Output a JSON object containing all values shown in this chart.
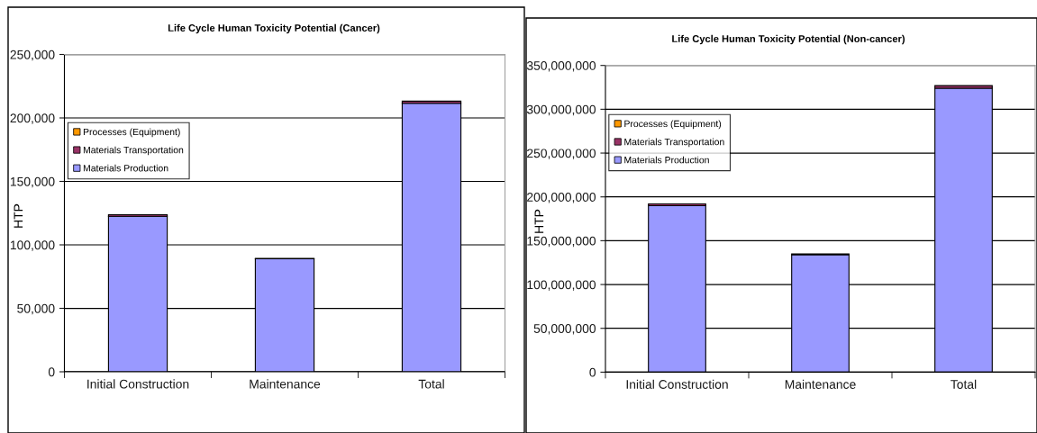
{
  "chart_data": [
    {
      "type": "bar",
      "title": "Life Cycle Human Toxicity Potential (Cancer)",
      "ylabel": "HTP",
      "categories": [
        "Initial Construction",
        "Maintenance",
        "Total"
      ],
      "stacked": true,
      "series": [
        {
          "name": "Materials Production",
          "color": "#9999ff",
          "values": [
            122500,
            89000,
            211500
          ]
        },
        {
          "name": "Materials Transportation",
          "color": "#993366",
          "values": [
            1300,
            400,
            1700
          ]
        },
        {
          "name": "Processes (Equipment)",
          "color": "#ff9900",
          "values": [
            null,
            null,
            null
          ]
        }
      ],
      "ylim": [
        0,
        250000
      ],
      "yticks": [
        0,
        {
          "value": 50000,
          "label": "50,000"
        },
        {
          "value": 100000,
          "label": "100,000"
        },
        {
          "value": 150000,
          "label": "150,000"
        },
        {
          "value": 200000,
          "label": "200,000"
        },
        {
          "value": 250000,
          "label": "250,000"
        }
      ],
      "grid": "y",
      "legend": "top left"
    },
    {
      "type": "bar",
      "title": "Life Cycle Human Toxicity Potential (Non-cancer)",
      "ylabel": "HTP",
      "categories": [
        "Initial Construction",
        "Maintenance",
        "Total"
      ],
      "stacked": true,
      "series": [
        {
          "name": "Materials Production",
          "color": "#9999ff",
          "values": [
            190000000,
            134000000,
            324000000
          ]
        },
        {
          "name": "Materials Transportation",
          "color": "#993366",
          "values": [
            2000000,
            1000000,
            3000000
          ]
        },
        {
          "name": "Processes (Equipment)",
          "color": "#ff9900",
          "values": [
            null,
            null,
            null
          ]
        }
      ],
      "ylim": [
        0,
        350000000
      ],
      "yticks": [
        0,
        {
          "value": 50000000,
          "label": "50,000,000"
        },
        {
          "value": 100000000,
          "label": "100,000,000"
        },
        {
          "value": 150000000,
          "label": "150,000,000"
        },
        {
          "value": 200000000,
          "label": "200,000,000"
        },
        {
          "value": 250000000,
          "label": "250,000,000"
        },
        {
          "value": 300000000,
          "label": "300,000,000"
        },
        {
          "value": 350000000,
          "label": "350,000,000"
        }
      ],
      "grid": "y",
      "legend": "top left"
    }
  ]
}
